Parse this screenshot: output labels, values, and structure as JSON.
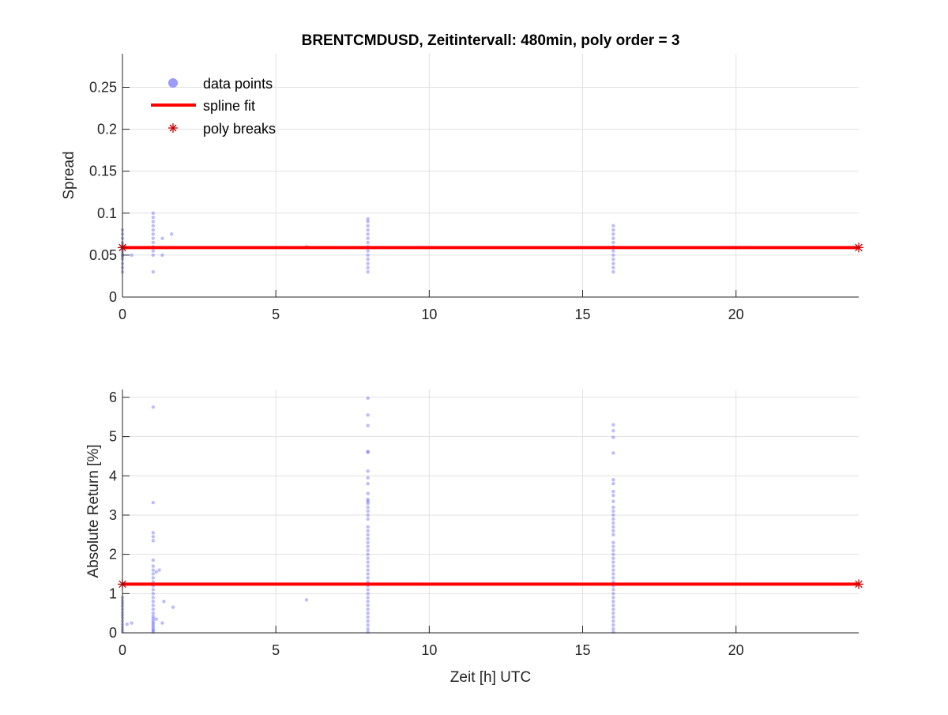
{
  "chart_data": [
    {
      "type": "scatter",
      "title": "BRENTCMDUSD, Zeitintervall: 480min, poly order = 3",
      "xlabel": "",
      "ylabel": "Spread",
      "xlim": [
        0,
        24
      ],
      "ylim": [
        0,
        0.29
      ],
      "xticks": [
        0,
        5,
        10,
        15,
        20
      ],
      "xtick_labels": [
        "0",
        "5",
        "10",
        "15",
        "20"
      ],
      "yticks": [
        0,
        0.05,
        0.1,
        0.15,
        0.2,
        0.25
      ],
      "ytick_labels": [
        "0",
        "0.05",
        "0.1",
        "0.15",
        "0.2",
        "0.25"
      ],
      "grid": true,
      "legend_position": "top-left",
      "legend": [
        "data points",
        "spline fit",
        "poly breaks"
      ],
      "series": [
        {
          "name": "data points",
          "kind": "scatter",
          "color": "#4040ff",
          "points": [
            [
              0,
              0.03
            ],
            [
              0,
              0.035
            ],
            [
              0,
              0.04
            ],
            [
              0,
              0.045
            ],
            [
              0,
              0.048
            ],
            [
              0,
              0.05
            ],
            [
              0,
              0.052
            ],
            [
              0,
              0.055
            ],
            [
              0,
              0.058
            ],
            [
              0,
              0.06
            ],
            [
              0,
              0.062
            ],
            [
              0,
              0.065
            ],
            [
              0,
              0.07
            ],
            [
              0,
              0.075
            ],
            [
              0,
              0.08
            ],
            [
              0.3,
              0.05
            ],
            [
              1,
              0.03
            ],
            [
              1,
              0.05
            ],
            [
              1,
              0.055
            ],
            [
              1,
              0.06
            ],
            [
              1,
              0.065
            ],
            [
              1,
              0.07
            ],
            [
              1,
              0.075
            ],
            [
              1,
              0.08
            ],
            [
              1,
              0.085
            ],
            [
              1,
              0.09
            ],
            [
              1,
              0.095
            ],
            [
              1,
              0.1
            ],
            [
              1.3,
              0.05
            ],
            [
              1.3,
              0.07
            ],
            [
              1.6,
              0.075
            ],
            [
              6,
              0.06
            ],
            [
              8,
              0.03
            ],
            [
              8,
              0.035
            ],
            [
              8,
              0.04
            ],
            [
              8,
              0.045
            ],
            [
              8,
              0.05
            ],
            [
              8,
              0.055
            ],
            [
              8,
              0.06
            ],
            [
              8,
              0.065
            ],
            [
              8,
              0.07
            ],
            [
              8,
              0.075
            ],
            [
              8,
              0.08
            ],
            [
              8,
              0.085
            ],
            [
              8,
              0.09
            ],
            [
              8,
              0.093
            ],
            [
              16,
              0.03
            ],
            [
              16,
              0.035
            ],
            [
              16,
              0.04
            ],
            [
              16,
              0.045
            ],
            [
              16,
              0.05
            ],
            [
              16,
              0.055
            ],
            [
              16,
              0.06
            ],
            [
              16,
              0.065
            ],
            [
              16,
              0.07
            ],
            [
              16,
              0.075
            ],
            [
              16,
              0.08
            ],
            [
              16,
              0.085
            ]
          ]
        },
        {
          "name": "spline fit",
          "kind": "line",
          "color": "#ff0000",
          "x": [
            0,
            24
          ],
          "y": [
            0.059,
            0.059
          ]
        },
        {
          "name": "poly breaks",
          "kind": "marker",
          "color": "#cc0000",
          "x": [
            0,
            24
          ],
          "y": [
            0.059,
            0.059
          ]
        }
      ]
    },
    {
      "type": "scatter",
      "title": "",
      "xlabel": "Zeit [h] UTC",
      "ylabel": "Absolute Return [%]",
      "xlim": [
        0,
        24
      ],
      "ylim": [
        0,
        6.2
      ],
      "xticks": [
        0,
        5,
        10,
        15,
        20
      ],
      "xtick_labels": [
        "0",
        "5",
        "10",
        "15",
        "20"
      ],
      "yticks": [
        0,
        1,
        2,
        3,
        4,
        5,
        6
      ],
      "ytick_labels": [
        "0",
        "1",
        "2",
        "3",
        "4",
        "5",
        "6"
      ],
      "grid": true,
      "series": [
        {
          "name": "data points",
          "kind": "scatter",
          "color": "#4040ff",
          "points": [
            [
              0,
              0.02
            ],
            [
              0,
              0.08
            ],
            [
              0,
              0.15
            ],
            [
              0,
              0.22
            ],
            [
              0,
              0.3
            ],
            [
              0,
              0.38
            ],
            [
              0,
              0.45
            ],
            [
              0,
              0.52
            ],
            [
              0,
              0.6
            ],
            [
              0,
              0.68
            ],
            [
              0,
              0.75
            ],
            [
              0,
              0.82
            ],
            [
              0,
              0.9
            ],
            [
              0.15,
              0.22
            ],
            [
              0.3,
              0.25
            ],
            [
              1,
              0.02
            ],
            [
              1,
              0.06
            ],
            [
              1,
              0.1
            ],
            [
              1,
              0.15
            ],
            [
              1,
              0.2
            ],
            [
              1,
              0.25
            ],
            [
              1,
              0.3
            ],
            [
              1,
              0.36
            ],
            [
              1,
              0.42
            ],
            [
              1,
              0.5
            ],
            [
              1,
              0.6
            ],
            [
              1,
              0.7
            ],
            [
              1,
              0.8
            ],
            [
              1,
              0.9
            ],
            [
              1,
              1.0
            ],
            [
              1,
              1.1
            ],
            [
              1,
              1.2
            ],
            [
              1,
              1.3
            ],
            [
              1,
              1.4
            ],
            [
              1,
              1.5
            ],
            [
              1,
              1.6
            ],
            [
              1,
              1.7
            ],
            [
              1,
              1.85
            ],
            [
              1,
              2.35
            ],
            [
              1,
              2.45
            ],
            [
              1,
              2.55
            ],
            [
              1,
              3.32
            ],
            [
              1,
              5.75
            ],
            [
              1.1,
              0.35
            ],
            [
              1.1,
              1.55
            ],
            [
              1.2,
              1.6
            ],
            [
              1.3,
              0.25
            ],
            [
              1.35,
              0.8
            ],
            [
              1.65,
              0.65
            ],
            [
              6,
              0.84
            ],
            [
              8,
              0.02
            ],
            [
              8,
              0.1
            ],
            [
              8,
              0.2
            ],
            [
              8,
              0.3
            ],
            [
              8,
              0.4
            ],
            [
              8,
              0.5
            ],
            [
              8,
              0.6
            ],
            [
              8,
              0.7
            ],
            [
              8,
              0.8
            ],
            [
              8,
              0.9
            ],
            [
              8,
              1.0
            ],
            [
              8,
              1.1
            ],
            [
              8,
              1.2
            ],
            [
              8,
              1.3
            ],
            [
              8,
              1.4
            ],
            [
              8,
              1.5
            ],
            [
              8,
              1.6
            ],
            [
              8,
              1.7
            ],
            [
              8,
              1.8
            ],
            [
              8,
              1.9
            ],
            [
              8,
              2.0
            ],
            [
              8,
              2.1
            ],
            [
              8,
              2.2
            ],
            [
              8,
              2.3
            ],
            [
              8,
              2.4
            ],
            [
              8,
              2.5
            ],
            [
              8,
              2.6
            ],
            [
              8,
              2.7
            ],
            [
              8,
              2.9
            ],
            [
              8,
              3.0
            ],
            [
              8,
              3.1
            ],
            [
              8,
              3.2
            ],
            [
              8,
              3.3
            ],
            [
              8,
              3.35
            ],
            [
              8,
              3.4
            ],
            [
              8,
              3.55
            ],
            [
              8,
              3.8
            ],
            [
              8,
              3.95
            ],
            [
              8,
              4.12
            ],
            [
              8,
              4.6
            ],
            [
              8,
              4.62
            ],
            [
              8,
              5.28
            ],
            [
              8,
              5.55
            ],
            [
              8,
              5.98
            ],
            [
              16,
              0.02
            ],
            [
              16,
              0.1
            ],
            [
              16,
              0.2
            ],
            [
              16,
              0.3
            ],
            [
              16,
              0.4
            ],
            [
              16,
              0.5
            ],
            [
              16,
              0.6
            ],
            [
              16,
              0.7
            ],
            [
              16,
              0.8
            ],
            [
              16,
              0.9
            ],
            [
              16,
              1.0
            ],
            [
              16,
              1.1
            ],
            [
              16,
              1.2
            ],
            [
              16,
              1.3
            ],
            [
              16,
              1.4
            ],
            [
              16,
              1.5
            ],
            [
              16,
              1.6
            ],
            [
              16,
              1.7
            ],
            [
              16,
              1.8
            ],
            [
              16,
              1.9
            ],
            [
              16,
              2.0
            ],
            [
              16,
              2.1
            ],
            [
              16,
              2.2
            ],
            [
              16,
              2.3
            ],
            [
              16,
              2.5
            ],
            [
              16,
              2.6
            ],
            [
              16,
              2.7
            ],
            [
              16,
              2.8
            ],
            [
              16,
              2.9
            ],
            [
              16,
              3.0
            ],
            [
              16,
              3.1
            ],
            [
              16,
              3.2
            ],
            [
              16,
              3.35
            ],
            [
              16,
              3.5
            ],
            [
              16,
              3.6
            ],
            [
              16,
              3.8
            ],
            [
              16,
              3.9
            ],
            [
              16,
              4.58
            ],
            [
              16,
              4.98
            ],
            [
              16,
              5.15
            ],
            [
              16,
              5.3
            ]
          ]
        },
        {
          "name": "spline fit",
          "kind": "line",
          "color": "#ff0000",
          "x": [
            0,
            24
          ],
          "y": [
            1.24,
            1.24
          ]
        },
        {
          "name": "poly breaks",
          "kind": "marker",
          "color": "#cc0000",
          "x": [
            0,
            24
          ],
          "y": [
            1.24,
            1.24
          ]
        }
      ]
    }
  ]
}
